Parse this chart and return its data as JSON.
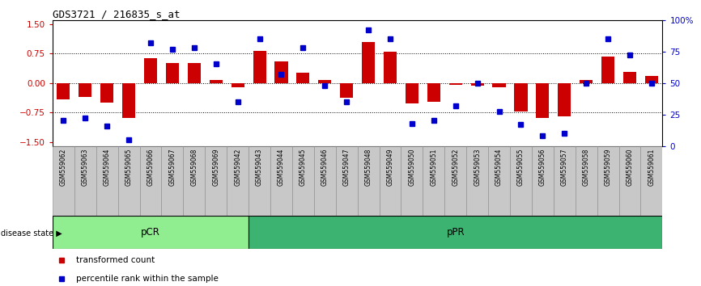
{
  "title": "GDS3721 / 216835_s_at",
  "samples": [
    "GSM559062",
    "GSM559063",
    "GSM559064",
    "GSM559065",
    "GSM559066",
    "GSM559067",
    "GSM559068",
    "GSM559069",
    "GSM559042",
    "GSM559043",
    "GSM559044",
    "GSM559045",
    "GSM559046",
    "GSM559047",
    "GSM559048",
    "GSM559049",
    "GSM559050",
    "GSM559051",
    "GSM559052",
    "GSM559053",
    "GSM559054",
    "GSM559055",
    "GSM559056",
    "GSM559057",
    "GSM559058",
    "GSM559059",
    "GSM559060",
    "GSM559061"
  ],
  "bar_values": [
    -0.42,
    -0.35,
    -0.5,
    -0.9,
    0.63,
    0.5,
    0.5,
    0.08,
    -0.1,
    0.82,
    0.55,
    0.25,
    0.07,
    -0.37,
    1.05,
    0.8,
    -0.52,
    -0.47,
    -0.05,
    -0.07,
    -0.1,
    -0.72,
    -0.9,
    -0.85,
    0.07,
    0.68,
    0.28,
    0.18
  ],
  "dot_values_pct": [
    20,
    22,
    16,
    5,
    82,
    77,
    78,
    65,
    35,
    85,
    57,
    78,
    48,
    35,
    92,
    85,
    18,
    20,
    32,
    50,
    27,
    17,
    8,
    10,
    50,
    85,
    72,
    50
  ],
  "pcr_count": 9,
  "ppr_count": 19,
  "ylim_left": [
    -1.6,
    1.6
  ],
  "ylim_right": [
    0,
    100
  ],
  "bar_color": "#CC0000",
  "dot_color": "#0000CC",
  "pcr_color": "#90EE90",
  "ppr_color": "#3CB371",
  "yticks_left": [
    -1.5,
    -0.75,
    0,
    0.75,
    1.5
  ],
  "yticks_right": [
    0,
    25,
    50,
    75,
    100
  ],
  "ytick_labels_right": [
    "0",
    "25",
    "50",
    "75",
    "100%"
  ],
  "hlines": [
    -0.75,
    0.0,
    0.75
  ],
  "fig_width": 8.66,
  "fig_height": 3.54,
  "dpi": 100
}
